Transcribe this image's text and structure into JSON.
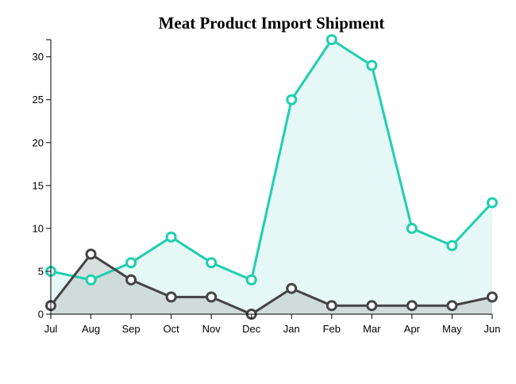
{
  "chart_data": {
    "type": "area",
    "title": "Meat Product Import Shipment",
    "xlabel": "",
    "ylabel": "",
    "categories": [
      "Jul",
      "Aug",
      "Sep",
      "Oct",
      "Nov",
      "Dec",
      "Jan",
      "Feb",
      "Mar",
      "Apr",
      "May",
      "Jun"
    ],
    "ylim": [
      0,
      32
    ],
    "yticks": [
      0,
      5,
      10,
      15,
      20,
      25,
      30
    ],
    "grid": false,
    "series": [
      {
        "values": [
          5,
          4,
          6,
          9,
          6,
          4,
          25,
          32,
          29,
          10,
          8,
          13
        ],
        "color": "#1ecfaf",
        "fill": "#e5f8f5"
      },
      {
        "values": [
          1,
          7,
          4,
          2,
          2,
          0,
          3,
          1,
          1,
          1,
          1,
          2
        ],
        "color": "#444444",
        "fill": "#c8d0ce"
      }
    ]
  }
}
